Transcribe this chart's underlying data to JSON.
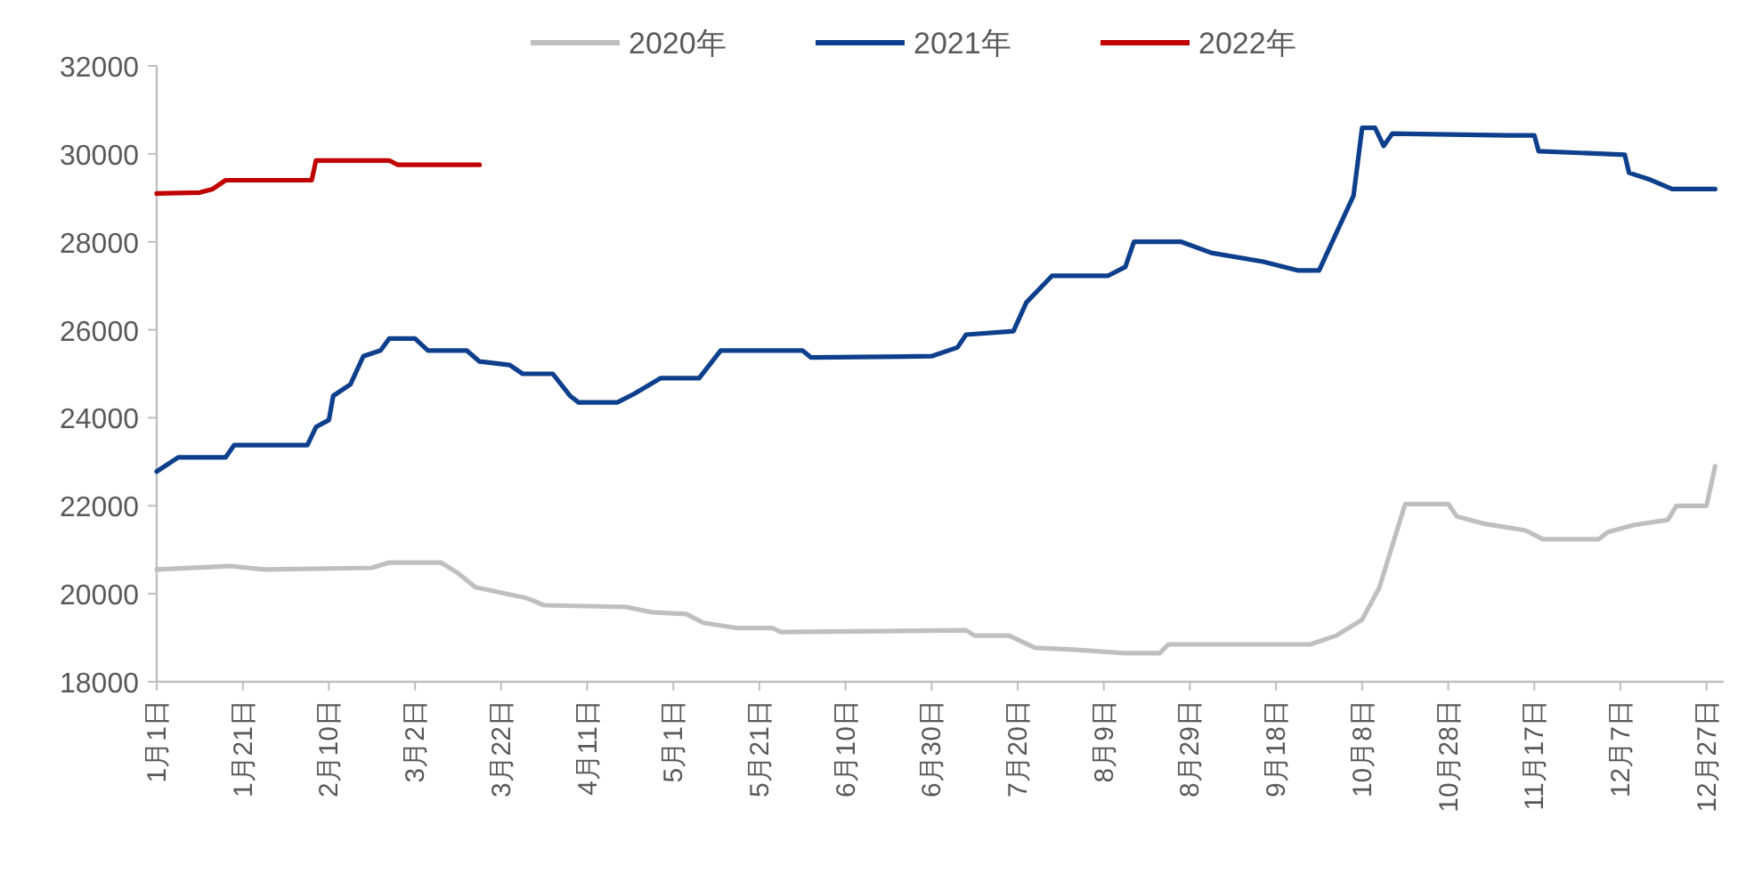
{
  "chart_data": {
    "type": "line",
    "xlim": [
      "--01-01",
      "--12-31"
    ],
    "xticks": [
      {
        "value": "--01-01",
        "label": "1月1日"
      },
      {
        "value": "--01-21",
        "label": "1月21日"
      },
      {
        "value": "--02-10",
        "label": "2月10日"
      },
      {
        "value": "--03-02",
        "label": "3月2日"
      },
      {
        "value": "--03-22",
        "label": "3月22日"
      },
      {
        "value": "--04-11",
        "label": "4月11日"
      },
      {
        "value": "--05-01",
        "label": "5月1日"
      },
      {
        "value": "--05-21",
        "label": "5月21日"
      },
      {
        "value": "--06-10",
        "label": "6月10日"
      },
      {
        "value": "--06-30",
        "label": "6月30日"
      },
      {
        "value": "--07-20",
        "label": "7月20日"
      },
      {
        "value": "--08-09",
        "label": "8月9日"
      },
      {
        "value": "--08-29",
        "label": "8月29日"
      },
      {
        "value": "--09-18",
        "label": "9月18日"
      },
      {
        "value": "--10-08",
        "label": "10月8日"
      },
      {
        "value": "--10-28",
        "label": "10月28日"
      },
      {
        "value": "--11-17",
        "label": "11月17日"
      },
      {
        "value": "--12-07",
        "label": "12月7日"
      },
      {
        "value": "--12-27",
        "label": "12月27日"
      }
    ],
    "ylim": [
      18000,
      32000
    ],
    "yticks": [
      18000,
      20000,
      22000,
      24000,
      26000,
      28000,
      30000,
      32000
    ],
    "grid": false,
    "legend": "top",
    "marker": "none",
    "line_style": "solid",
    "series": [
      {
        "name": "2020年",
        "color": "#bfbfbf",
        "x": [
          "--01-01",
          "--01-18",
          "--01-26",
          "--02-20",
          "--02-24",
          "--03-08",
          "--03-12",
          "--03-16",
          "--03-28",
          "--04-01",
          "--04-20",
          "--04-26",
          "--05-04",
          "--05-08",
          "--05-16",
          "--05-24",
          "--05-26",
          "--07-08",
          "--07-10",
          "--07-18",
          "--07-24",
          "--08-02",
          "--08-14",
          "--08-22",
          "--08-24",
          "--09-26",
          "--10-02",
          "--10-08",
          "--10-12",
          "--10-18",
          "--10-28",
          "--10-30",
          "--11-05",
          "--11-15",
          "--11-19",
          "--12-02",
          "--12-04",
          "--12-10",
          "--12-18",
          "--12-20",
          "--12-27",
          "--12-29"
        ],
        "values": [
          20550,
          20630,
          20550,
          20590,
          20710,
          20710,
          20470,
          20150,
          19900,
          19740,
          19700,
          19580,
          19540,
          19340,
          19220,
          19220,
          19130,
          19170,
          19050,
          19050,
          18770,
          18730,
          18650,
          18650,
          18850,
          18850,
          19050,
          19410,
          20140,
          22040,
          22040,
          21760,
          21600,
          21440,
          21240,
          21240,
          21400,
          21560,
          21680,
          22000,
          22000,
          22900
        ]
      },
      {
        "name": "2021年",
        "color": "#0e3f8c",
        "x": [
          "--01-01",
          "--01-06",
          "--01-17",
          "--01-19",
          "--02-05",
          "--02-07",
          "--02-10",
          "--02-11",
          "--02-15",
          "--02-18",
          "--02-22",
          "--02-24",
          "--03-02",
          "--03-05",
          "--03-14",
          "--03-17",
          "--03-24",
          "--03-27",
          "--04-03",
          "--04-07",
          "--04-09",
          "--04-18",
          "--04-22",
          "--04-28",
          "--05-07",
          "--05-12",
          "--05-31",
          "--06-02",
          "--06-30",
          "--07-06",
          "--07-08",
          "--07-19",
          "--07-22",
          "--07-28",
          "--08-10",
          "--08-14",
          "--08-16",
          "--08-27",
          "--09-03",
          "--09-15",
          "--09-23",
          "--09-28",
          "--10-06",
          "--10-08",
          "--10-11",
          "--10-13",
          "--10-15",
          "--11-11",
          "--11-17",
          "--11-18",
          "--12-08",
          "--12-09",
          "--12-14",
          "--12-19",
          "--12-29"
        ],
        "values": [
          22780,
          23100,
          23100,
          23380,
          23380,
          23790,
          23950,
          24500,
          24760,
          25400,
          25530,
          25800,
          25800,
          25530,
          25530,
          25280,
          25200,
          25000,
          25000,
          24500,
          24350,
          24350,
          24550,
          24900,
          24900,
          25530,
          25530,
          25370,
          25400,
          25600,
          25890,
          25970,
          26620,
          27230,
          27230,
          27430,
          28000,
          28000,
          27750,
          27550,
          27350,
          27350,
          29050,
          30590,
          30590,
          30180,
          30460,
          30420,
          30420,
          30060,
          29980,
          29570,
          29410,
          29200,
          29200
        ]
      },
      {
        "name": "2022年",
        "color": "#c00000",
        "x": [
          "--01-01",
          "--01-11",
          "--01-14",
          "--01-17",
          "--02-06",
          "--02-07",
          "--02-24",
          "--02-26",
          "--03-17"
        ],
        "values": [
          29100,
          29120,
          29200,
          29400,
          29400,
          29850,
          29850,
          29750,
          29750
        ]
      }
    ]
  }
}
